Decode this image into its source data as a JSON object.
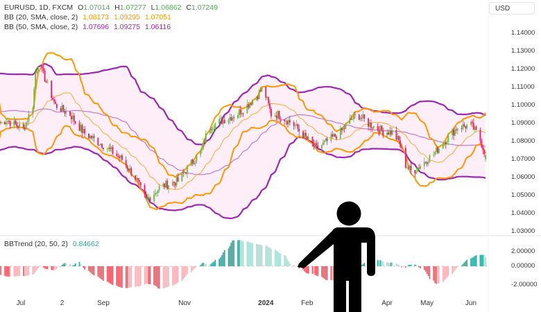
{
  "header": {
    "symbol": "EURUSD, 1D, FXCM",
    "o_label": "O",
    "o_value": "1.07014",
    "h_label": "H",
    "h_value": "1.07277",
    "l_label": "L",
    "l_value": "1.06862",
    "c_label": "C",
    "c_value": "1.07249"
  },
  "bb20": {
    "label": "BB (20, SMA, close, 2)",
    "basis": "1.08173",
    "upper": "1.09295",
    "lower": "1.07051"
  },
  "bb50": {
    "label": "BB (50, SMA, close, 2)",
    "basis": "1.07696",
    "upper": "1.09275",
    "lower": "1.06116"
  },
  "bbtrend": {
    "label": "BBTrend (20, 50, 2)",
    "value": "0.84662"
  },
  "currency_button": "USD",
  "colors": {
    "up": "#5cc13a",
    "down": "#e91e63",
    "bb20": "#ff9800",
    "bb50": "#9c27b0",
    "band_fill": "#fdeef8",
    "trend_pos": "#26a69a",
    "trend_pos_light": "#a7dcd3",
    "trend_neg": "#f7525f",
    "trend_neg_light": "#fbb1b6",
    "value_green": "#4caf50"
  },
  "overlay": {
    "icon": "pointing-person-icon"
  },
  "chart_data": {
    "type": "candlestick",
    "symbol": "EURUSD",
    "interval": "1D",
    "price_axis": {
      "ticks": [
        "1.14000",
        "1.13000",
        "1.12000",
        "1.11000",
        "1.10000",
        "1.09000",
        "1.08000",
        "1.07000",
        "1.06000",
        "1.05000",
        "1.04000",
        "1.03000"
      ],
      "ylim": [
        1.03,
        1.14
      ]
    },
    "indicator_axis": {
      "ticks": [
        "2.00000",
        "0.00000",
        "-2.00000"
      ]
    },
    "time_axis": {
      "ticks": [
        {
          "label": "Jul",
          "date": "2023-07-01"
        },
        {
          "label": "2",
          "date": "2023-08-01"
        },
        {
          "label": "Sep",
          "date": "2023-09-01"
        },
        {
          "label": "Nov",
          "date": "2023-11-01"
        },
        {
          "label": "2024",
          "date": "2024-01-01",
          "bold": true
        },
        {
          "label": "Feb",
          "date": "2024-02-01"
        },
        {
          "label": "Apr",
          "date": "2024-04-01"
        },
        {
          "label": "May",
          "date": "2024-05-01"
        },
        {
          "label": "Jun",
          "date": "2024-06-03"
        }
      ]
    },
    "close_path": [
      [
        "2023-06-15",
        1.09
      ],
      [
        "2023-06-20",
        1.092
      ],
      [
        "2023-07-03",
        1.087
      ],
      [
        "2023-07-10",
        1.1
      ],
      [
        "2023-07-12",
        1.118
      ],
      [
        "2023-07-14",
        1.124
      ],
      [
        "2023-07-19",
        1.115
      ],
      [
        "2023-07-27",
        1.1
      ],
      [
        "2023-08-07",
        1.095
      ],
      [
        "2023-08-17",
        1.085
      ],
      [
        "2023-09-01",
        1.078
      ],
      [
        "2023-09-15",
        1.07
      ],
      [
        "2023-09-25",
        1.06
      ],
      [
        "2023-10-03",
        1.047
      ],
      [
        "2023-10-14",
        1.055
      ],
      [
        "2023-10-27",
        1.058
      ],
      [
        "2023-11-06",
        1.068
      ],
      [
        "2023-11-14",
        1.075
      ],
      [
        "2023-11-19",
        1.088
      ],
      [
        "2023-11-30",
        1.092
      ],
      [
        "2023-12-10",
        1.095
      ],
      [
        "2023-12-18",
        1.1
      ],
      [
        "2023-12-26",
        1.106
      ],
      [
        "2023-12-30",
        1.11
      ],
      [
        "2024-01-05",
        1.095
      ],
      [
        "2024-01-10",
        1.095
      ],
      [
        "2024-01-21",
        1.09
      ],
      [
        "2024-01-31",
        1.082
      ],
      [
        "2024-02-08",
        1.076
      ],
      [
        "2024-02-16",
        1.08
      ],
      [
        "2024-02-26",
        1.085
      ],
      [
        "2024-03-05",
        1.092
      ],
      [
        "2024-03-10",
        1.095
      ],
      [
        "2024-03-18",
        1.09
      ],
      [
        "2024-03-28",
        1.086
      ],
      [
        "2024-04-05",
        1.085
      ],
      [
        "2024-04-10",
        1.08
      ],
      [
        "2024-04-15",
        1.067
      ],
      [
        "2024-04-20",
        1.063
      ],
      [
        "2024-04-28",
        1.068
      ],
      [
        "2024-05-06",
        1.073
      ],
      [
        "2024-05-14",
        1.08
      ],
      [
        "2024-05-24",
        1.088
      ],
      [
        "2024-06-03",
        1.089
      ],
      [
        "2024-06-09",
        1.083
      ],
      [
        "2024-06-14",
        1.0725
      ]
    ],
    "last_bar": {
      "open": 1.07014,
      "high": 1.07277,
      "low": 1.06862,
      "close": 1.07249
    },
    "indicators": [
      "BB (20, SMA, close, 2)",
      "BB (50, SMA, close, 2)",
      "BBTrend (20, 50, 2)"
    ]
  }
}
